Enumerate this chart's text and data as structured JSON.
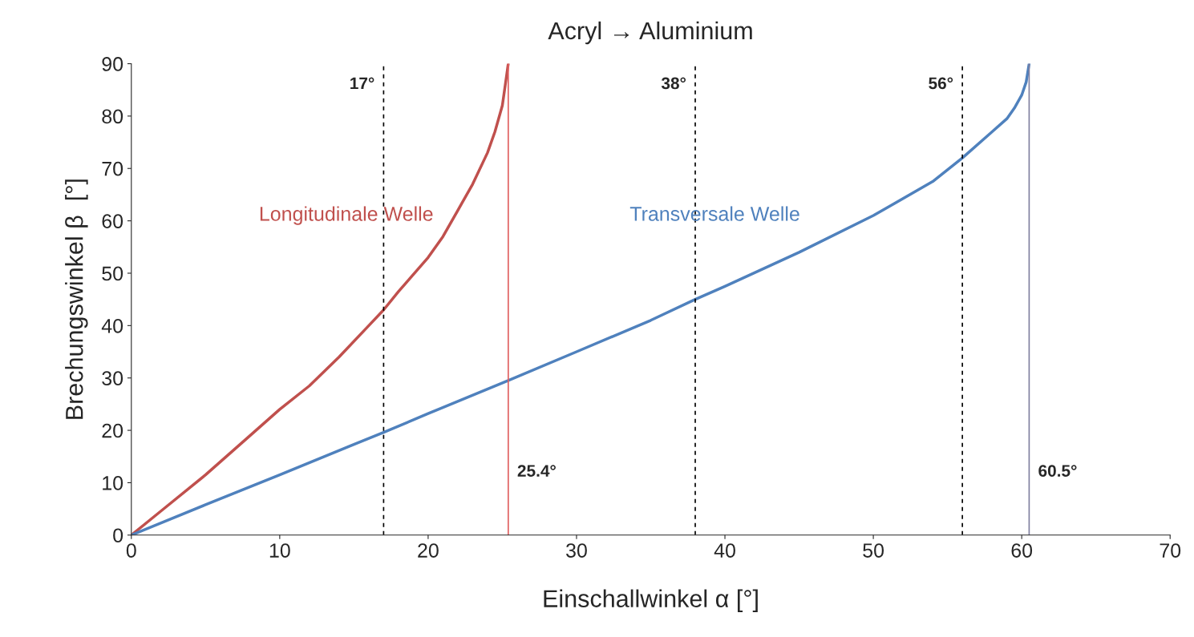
{
  "chart_data": {
    "type": "line",
    "title": "Acryl → Aluminium",
    "xlabel": "Einschallwinkel α [°]",
    "ylabel": "Brechungswinkel β  [°]",
    "series": [
      {
        "name": "Longitudinale Welle",
        "color": "#c0504d",
        "x": [
          0,
          2,
          5,
          8,
          10,
          12,
          14,
          16,
          17,
          18,
          20,
          21,
          22,
          23,
          24,
          24.5,
          25,
          25.2,
          25.4
        ],
        "values": [
          0,
          4.6,
          11.5,
          19,
          24,
          28.5,
          34,
          40,
          43,
          46.5,
          53,
          57,
          62,
          67,
          73,
          77,
          82,
          86,
          90
        ]
      },
      {
        "name": "Transversale Welle",
        "color": "#4f81bd",
        "x": [
          0,
          5,
          10,
          15,
          17,
          20,
          25.4,
          30,
          35,
          38,
          40,
          45,
          50,
          54,
          56,
          58,
          59,
          59.5,
          60,
          60.3,
          60.5
        ],
        "values": [
          0,
          5.8,
          11.5,
          17.3,
          19.6,
          23.2,
          29.5,
          35,
          41,
          45,
          47.5,
          54,
          61,
          67.5,
          72,
          77,
          79.5,
          81.5,
          84,
          86.5,
          90
        ]
      }
    ],
    "xlim": [
      0,
      70
    ],
    "ylim": [
      0,
      90
    ],
    "xticks": [
      0,
      10,
      20,
      30,
      40,
      50,
      60,
      70
    ],
    "yticks": [
      0,
      10,
      20,
      30,
      40,
      50,
      60,
      70,
      80,
      90
    ],
    "grid": false,
    "legend": false,
    "marker": "none",
    "line_style": "solid",
    "ref_lines": [
      {
        "axis": "x",
        "value": 17,
        "label": "17°",
        "color": "#000000",
        "line_style": "dashed"
      },
      {
        "axis": "x",
        "value": 25.4,
        "label": "25.4°",
        "color": "#e06060",
        "line_style": "solid"
      },
      {
        "axis": "x",
        "value": 38,
        "label": "38°",
        "color": "#000000",
        "line_style": "dashed"
      },
      {
        "axis": "x",
        "value": 56,
        "label": "56°",
        "color": "#000000",
        "line_style": "dashed"
      },
      {
        "axis": "x",
        "value": 60.5,
        "label": "60.5°",
        "color": "#8080a0",
        "line_style": "solid"
      }
    ]
  }
}
